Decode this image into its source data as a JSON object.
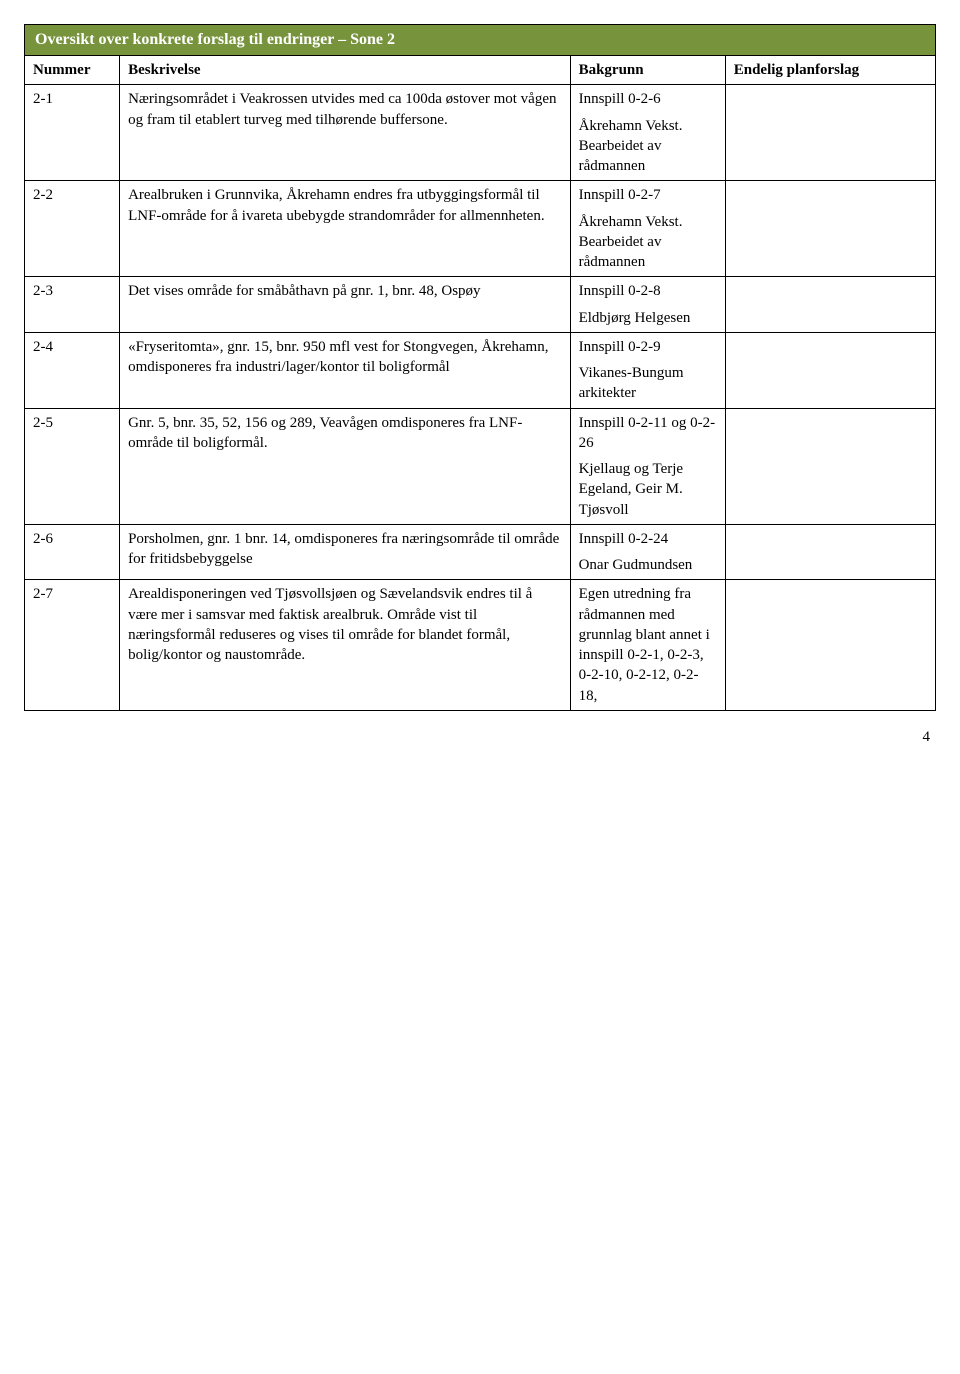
{
  "title": "Oversikt over konkrete forslag til endringer – Sone 2",
  "headers": {
    "num": "Nummer",
    "desc": "Beskrivelse",
    "bak": "Bakgrunn",
    "plan": "Endelig planforslag"
  },
  "rows": [
    {
      "num": "2-1",
      "desc": "Næringsområdet i Veakrossen utvides med ca 100da østover mot vågen og fram til etablert turveg med tilhørende buffersone.",
      "bak1": "Innspill 0-2-6",
      "bak2": "Åkrehamn Vekst. Bearbeidet av rådmannen"
    },
    {
      "num": "2-2",
      "desc": "Arealbruken i Grunnvika, Åkrehamn endres fra utbyggingsformål til LNF-område for å ivareta ubebygde strandområder for allmennheten.",
      "bak1": "Innspill 0-2-7",
      "bak2": "Åkrehamn Vekst. Bearbeidet av rådmannen"
    },
    {
      "num": "2-3",
      "desc": "Det vises område for småbåthavn på gnr. 1, bnr. 48, Ospøy",
      "bak1": "Innspill 0-2-8",
      "bak2": "Eldbjørg Helgesen"
    },
    {
      "num": "2-4",
      "desc": "«Fryseritomta», gnr. 15, bnr. 950 mfl vest for Stongvegen, Åkrehamn, omdisponeres fra industri/lager/kontor til boligformål",
      "bak1": "Innspill 0-2-9",
      "bak2": "Vikanes-Bungum arkitekter"
    },
    {
      "num": "2-5",
      "desc": "Gnr. 5, bnr. 35, 52, 156 og 289, Veavågen omdisponeres fra LNF-område til boligformål.",
      "bak1": "Innspill 0-2-11 og 0-2-26",
      "bak2": "Kjellaug og Terje Egeland, Geir M. Tjøsvoll"
    },
    {
      "num": "2-6",
      "desc": "Porsholmen, gnr. 1 bnr. 14, omdisponeres fra næringsområde til område for fritidsbebyggelse",
      "bak1": "Innspill 0-2-24",
      "bak2": "Onar Gudmundsen"
    },
    {
      "num": "2-7",
      "desc": "Arealdisponeringen ved Tjøsvollsjøen og Sævelandsvik endres til å være mer i samsvar med faktisk arealbruk. Område vist til næringsformål reduseres og vises til område for blandet formål, bolig/kontor og naustområde.",
      "bak1": "Egen utredning fra rådmannen med grunnlag blant annet i innspill 0-2-1, 0-2-3, 0-2-10, 0-2-12, 0-2-18,",
      "bak2": ""
    }
  ],
  "pageNumber": "4",
  "colors": {
    "titleBg": "#77933c",
    "titleText": "#ffffff",
    "border": "#000000",
    "bodyText": "#000000",
    "background": "#ffffff"
  }
}
